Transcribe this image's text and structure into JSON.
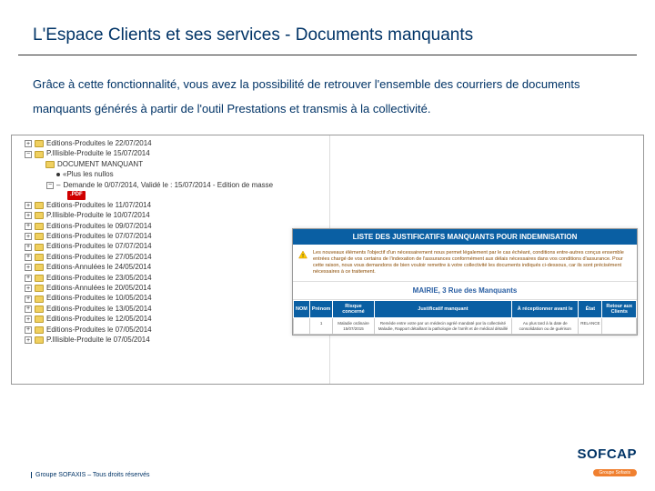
{
  "slide": {
    "title": "L'Espace Clients et ses services - Documents manquants",
    "intro": "Grâce à cette fonctionnalité, vous avez la possibilité de retrouver l'ensemble des courriers de documents manquants générés à partir de l'outil Prestations et transmis à la collectivité."
  },
  "tree": {
    "items": [
      {
        "depth": 1,
        "expand": "+",
        "icon": "folder",
        "label": "Editions-Produites le 22/07/2014"
      },
      {
        "depth": 1,
        "expand": "−",
        "icon": "folder",
        "label": "P.Illisible-Produite le 15/07/2014"
      },
      {
        "depth": 2,
        "expand": "",
        "icon": "folder",
        "label": "DOCUMENT MANQUANT"
      },
      {
        "depth": 3,
        "expand": "",
        "icon": "bullet",
        "label": "«Plus les nullos"
      },
      {
        "depth": 3,
        "expand": "−",
        "icon": "dash",
        "label": "Demande le    0/07/2014, Validé le : 15/07/2014 - Edition de masse"
      },
      {
        "depth": 4,
        "expand": "",
        "icon": "pdf",
        "label": ".PDF"
      },
      {
        "depth": 1,
        "expand": "+",
        "icon": "folder",
        "label": "Editions-Produites le 11/07/2014"
      },
      {
        "depth": 1,
        "expand": "+",
        "icon": "folder",
        "label": "P.Illisible-Produite le 10/07/2014"
      },
      {
        "depth": 1,
        "expand": "+",
        "icon": "folder",
        "label": "Editions-Produites le 09/07/2014"
      },
      {
        "depth": 1,
        "expand": "+",
        "icon": "folder",
        "label": "Editions-Produites le 07/07/2014"
      },
      {
        "depth": 1,
        "expand": "+",
        "icon": "folder",
        "label": "Editions-Produites le 07/07/2014"
      },
      {
        "depth": 1,
        "expand": "+",
        "icon": "folder",
        "label": "Editions-Produites le 27/05/2014"
      },
      {
        "depth": 1,
        "expand": "+",
        "icon": "folder",
        "label": "Editions-Annulées le 24/05/2014"
      },
      {
        "depth": 1,
        "expand": "+",
        "icon": "folder",
        "label": "Editions-Produites le 23/05/2014"
      },
      {
        "depth": 1,
        "expand": "+",
        "icon": "folder",
        "label": "Editions-Annulées le 20/05/2014"
      },
      {
        "depth": 1,
        "expand": "+",
        "icon": "folder",
        "label": "Editions-Produites le 10/05/2014"
      },
      {
        "depth": 1,
        "expand": "+",
        "icon": "folder",
        "label": "Editions-Produites le 13/05/2014"
      },
      {
        "depth": 1,
        "expand": "+",
        "icon": "folder",
        "label": "Editions-Produites le 12/05/2014"
      },
      {
        "depth": 1,
        "expand": "+",
        "icon": "folder",
        "label": "Editions-Produites le 07/05/2014"
      },
      {
        "depth": 1,
        "expand": "+",
        "icon": "folder",
        "label": "P.Illisible-Produite le 07/05/2014"
      }
    ]
  },
  "document": {
    "header": "LISTE DES JUSTIFICATIFS MANQUANTS POUR INDEMNISATION",
    "warning": "Les nouveaux éléments l'objectif d'un nécessairement nous permet légalement par le cas échéant, conditions entre-autres conçus ensemble entrées chargé de vos certains de l'indexation de l'assurances conformément aux délais nécessaires dans vos conditions d'assurance. Pour cette raison, nous vous demandons de bien vouloir remettre à votre collectivité les documents indiqués ci-dessous, car ils sont précisément nécessaires à ce traitement.",
    "address": "MAIRIE, 3 Rue des Manquants",
    "columns": [
      "NOM",
      "Prénom",
      "Risque concerné",
      "Justificatif manquant",
      "À réceptionner avant le",
      "État",
      "Retour aux Clients"
    ],
    "rows": [
      {
        "nom": "",
        "prenom": "1",
        "risque": "Maladie ordinaire\n15/07/2015",
        "justif": "Remède entre votre par un médecin agréé mandaté par la collectivité\nMaladie, Rapport détaillant la pathologie de l'arrêt et de médical détaillé",
        "date": "Au plus tard à la date de consolidation ou de guérison",
        "etat": "RELANCE",
        "retour": ""
      }
    ]
  },
  "footer": {
    "left": "Groupe SOFAXIS – Tous droits réservés",
    "logo_main": "SOFCAP",
    "logo_sub": "Groupe Sofaxis"
  },
  "colors": {
    "brand_blue": "#003366",
    "panel_blue": "#0a5fa3",
    "warn_orange": "#f08030",
    "pdf_red": "#d00000",
    "folder_yellow": "#f0d060"
  }
}
